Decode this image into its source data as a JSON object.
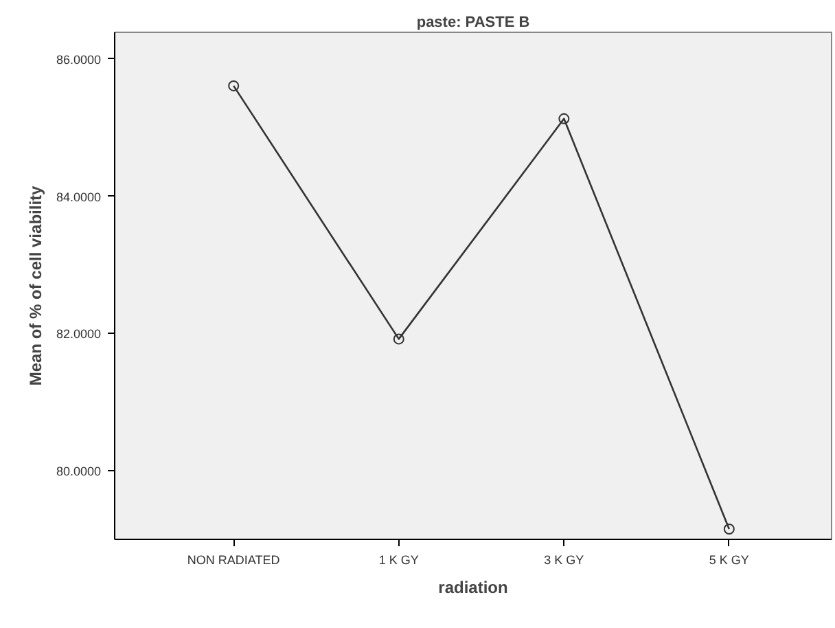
{
  "chart_data": {
    "type": "line",
    "title": "paste: PASTE B",
    "xlabel": "radiation",
    "ylabel": "Mean of % of cell viability",
    "categories": [
      "NON RADIATED",
      "1 K GY",
      "3 K GY",
      "5 K GY"
    ],
    "values": [
      85.61,
      81.92,
      85.13,
      79.15
    ],
    "color": "#333333",
    "ylim": [
      79.0,
      86.39
    ],
    "yticks": [
      {
        "value": 80,
        "label": "80.0000"
      },
      {
        "value": 82,
        "label": "82.0000"
      },
      {
        "value": 84,
        "label": "84.0000"
      },
      {
        "value": 86,
        "label": "86.0000"
      }
    ],
    "grid": false,
    "marker": "circle",
    "line_style": "solid"
  }
}
